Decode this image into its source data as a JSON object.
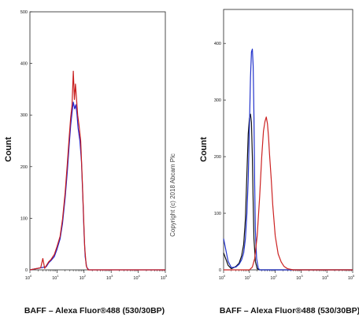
{
  "watermark": "Copyright (c) 2018 Abcam Plc",
  "chart_data": [
    {
      "type": "line",
      "xlabel": "BAFF – Alexa Fluor®488 (530/30BP)",
      "ylabel": "Count",
      "xscale": "log",
      "xlim": [
        1,
        100000
      ],
      "ylim": [
        0,
        500
      ],
      "yticks": [
        0,
        100,
        200,
        300,
        400,
        500
      ],
      "xticks": [
        {
          "base": "10",
          "exp": "0"
        },
        {
          "base": "10",
          "exp": "1"
        },
        {
          "base": "10",
          "exp": "2"
        },
        {
          "base": "10",
          "exp": "3"
        },
        {
          "base": "10",
          "exp": "4"
        },
        {
          "base": "10",
          "exp": "5"
        }
      ],
      "series": [
        {
          "color": "#2222cc",
          "points": [
            [
              1,
              0
            ],
            [
              2.5,
              4
            ],
            [
              4,
              6
            ],
            [
              5,
              14
            ],
            [
              6,
              18
            ],
            [
              8,
              26
            ],
            [
              10,
              40
            ],
            [
              13,
              60
            ],
            [
              16,
              90
            ],
            [
              20,
              140
            ],
            [
              24,
              190
            ],
            [
              28,
              240
            ],
            [
              32,
              280
            ],
            [
              36,
              305
            ],
            [
              40,
              325
            ],
            [
              45,
              312
            ],
            [
              50,
              320
            ],
            [
              55,
              300
            ],
            [
              60,
              275
            ],
            [
              70,
              250
            ],
            [
              80,
              210
            ],
            [
              90,
              140
            ],
            [
              100,
              70
            ],
            [
              110,
              25
            ],
            [
              125,
              5
            ],
            [
              150,
              0
            ],
            [
              100000,
              0
            ]
          ]
        },
        {
          "color": "#c81e1e",
          "points": [
            [
              1,
              0
            ],
            [
              2.5,
              4
            ],
            [
              3,
              22
            ],
            [
              3.5,
              3
            ],
            [
              4,
              8
            ],
            [
              5,
              16
            ],
            [
              6,
              20
            ],
            [
              8,
              30
            ],
            [
              10,
              45
            ],
            [
              13,
              65
            ],
            [
              16,
              98
            ],
            [
              20,
              150
            ],
            [
              24,
              205
            ],
            [
              28,
              255
            ],
            [
              32,
              295
            ],
            [
              36,
              320
            ],
            [
              40,
              385
            ],
            [
              44,
              330
            ],
            [
              48,
              360
            ],
            [
              52,
              335
            ],
            [
              58,
              300
            ],
            [
              65,
              280
            ],
            [
              75,
              250
            ],
            [
              85,
              180
            ],
            [
              95,
              110
            ],
            [
              105,
              45
            ],
            [
              120,
              8
            ],
            [
              140,
              0
            ],
            [
              100000,
              0
            ]
          ]
        }
      ]
    },
    {
      "type": "line",
      "xlabel": "BAFF – Alexa Fluor®488 (530/30BP)",
      "ylabel": "Count",
      "xscale": "log",
      "xlim": [
        1,
        100000
      ],
      "ylim": [
        0,
        460
      ],
      "yticks": [
        0,
        100,
        200,
        300,
        400
      ],
      "xticks": [
        {
          "base": "10",
          "exp": "0"
        },
        {
          "base": "10",
          "exp": "1"
        },
        {
          "base": "10",
          "exp": "2"
        },
        {
          "base": "10",
          "exp": "3"
        },
        {
          "base": "10",
          "exp": "4"
        },
        {
          "base": "10",
          "exp": "5"
        }
      ],
      "series": [
        {
          "color": "#111111",
          "points": [
            [
              1,
              30
            ],
            [
              1.5,
              8
            ],
            [
              2,
              2
            ],
            [
              3,
              6
            ],
            [
              4,
              12
            ],
            [
              5,
              25
            ],
            [
              6,
              45
            ],
            [
              7,
              90
            ],
            [
              8,
              170
            ],
            [
              9,
              240
            ],
            [
              10,
              268
            ],
            [
              11,
              275
            ],
            [
              12,
              260
            ],
            [
              13,
              200
            ],
            [
              14,
              120
            ],
            [
              15,
              55
            ],
            [
              17,
              15
            ],
            [
              20,
              2
            ],
            [
              25,
              0
            ],
            [
              100000,
              0
            ]
          ]
        },
        {
          "color": "#2233cc",
          "points": [
            [
              1,
              55
            ],
            [
              1.5,
              15
            ],
            [
              2,
              4
            ],
            [
              3,
              5
            ],
            [
              4,
              10
            ],
            [
              5,
              18
            ],
            [
              6,
              30
            ],
            [
              7,
              55
            ],
            [
              8,
              100
            ],
            [
              9,
              160
            ],
            [
              10,
              250
            ],
            [
              11,
              340
            ],
            [
              12,
              385
            ],
            [
              13,
              390
            ],
            [
              14,
              360
            ],
            [
              15,
              270
            ],
            [
              16,
              150
            ],
            [
              17,
              70
            ],
            [
              19,
              20
            ],
            [
              22,
              3
            ],
            [
              25,
              0
            ],
            [
              100000,
              0
            ]
          ]
        },
        {
          "color": "#cc2222",
          "points": [
            [
              1,
              0
            ],
            [
              10,
              0
            ],
            [
              13,
              5
            ],
            [
              16,
              20
            ],
            [
              20,
              60
            ],
            [
              25,
              130
            ],
            [
              30,
              200
            ],
            [
              35,
              245
            ],
            [
              40,
              262
            ],
            [
              45,
              270
            ],
            [
              50,
              258
            ],
            [
              55,
              235
            ],
            [
              60,
              205
            ],
            [
              70,
              160
            ],
            [
              80,
              115
            ],
            [
              100,
              60
            ],
            [
              130,
              28
            ],
            [
              170,
              14
            ],
            [
              220,
              6
            ],
            [
              300,
              2
            ],
            [
              500,
              0
            ],
            [
              100000,
              0
            ]
          ]
        }
      ]
    }
  ]
}
